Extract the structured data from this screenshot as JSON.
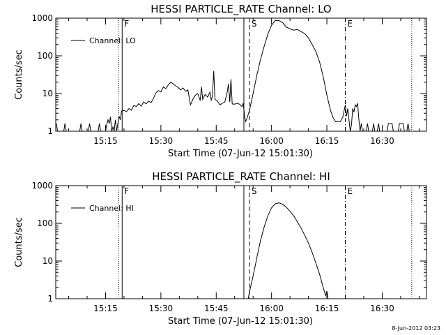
{
  "footer_timestamp": "8-Jun-2012 03:23",
  "chart_data": [
    {
      "type": "line",
      "title": "HESSI PARTICLE_RATE Channel: LO",
      "xlabel": "Start Time (07-Jun-12 15:01:30)",
      "ylabel": "Counts/sec",
      "yscale": "log",
      "ylim": [
        1,
        1000
      ],
      "xlim": [
        "15:01:30",
        "16:42:00"
      ],
      "x_ticks": [
        "15:15",
        "15:30",
        "15:45",
        "16:00",
        "16:15",
        "16:30"
      ],
      "y_ticks": [
        "1",
        "10",
        "100",
        "1000"
      ],
      "grid": false,
      "legend": {
        "position": "top-left",
        "entries": [
          "Channel: LO"
        ]
      },
      "markers": [
        {
          "time": "15:18:30",
          "style": "dotted",
          "label": ""
        },
        {
          "time": "15:19:30",
          "style": "solid",
          "label": "F"
        },
        {
          "time": "15:52:30",
          "style": "solid",
          "label": ""
        },
        {
          "time": "15:54:00",
          "style": "dashed",
          "label": "S"
        },
        {
          "time": "16:20:00",
          "style": "dashdot",
          "label": "E"
        },
        {
          "time": "16:38:00",
          "style": "dotted",
          "label": ""
        }
      ],
      "series": [
        {
          "name": "Channel: LO",
          "points": [
            [
              "15:01:40",
              1.6
            ],
            [
              "15:02:00",
              1
            ],
            [
              "15:03:40",
              1
            ],
            [
              "15:04:00",
              1.6
            ],
            [
              "15:04:20",
              1
            ],
            [
              "15:08:00",
              1
            ],
            [
              "15:08:20",
              1.6
            ],
            [
              "15:08:40",
              1
            ],
            [
              "15:10:20",
              1
            ],
            [
              "15:10:40",
              1.6
            ],
            [
              "15:11:00",
              1
            ],
            [
              "15:13:00",
              1
            ],
            [
              "15:13:20",
              1.6
            ],
            [
              "15:13:40",
              1
            ],
            [
              "15:15:00",
              1
            ],
            [
              "15:15:20",
              1.5
            ],
            [
              "15:15:40",
              2
            ],
            [
              "15:16:00",
              1.6
            ],
            [
              "15:16:20",
              2.4
            ],
            [
              "15:16:40",
              1
            ],
            [
              "15:17:00",
              1.3
            ],
            [
              "15:17:20",
              1
            ],
            [
              "15:17:40",
              2
            ],
            [
              "15:18:00",
              1
            ],
            [
              "15:18:20",
              1.6
            ],
            [
              "15:18:40",
              2.5
            ],
            [
              "15:19:00",
              2
            ],
            [
              "15:19:20",
              3.4
            ],
            [
              "15:20:00",
              3.6
            ],
            [
              "15:20:40",
              3.3
            ],
            [
              "15:21:20",
              4
            ],
            [
              "15:22:00",
              3.6
            ],
            [
              "15:22:40",
              4.8
            ],
            [
              "15:23:20",
              4.5
            ],
            [
              "15:24:00",
              5.4
            ],
            [
              "15:24:40",
              4.6
            ],
            [
              "15:25:20",
              6
            ],
            [
              "15:26:00",
              5.3
            ],
            [
              "15:26:40",
              6.3
            ],
            [
              "15:27:20",
              5.7
            ],
            [
              "15:28:00",
              7.5
            ],
            [
              "15:28:40",
              10.5
            ],
            [
              "15:29:20",
              12
            ],
            [
              "15:30:00",
              11
            ],
            [
              "15:30:40",
              15
            ],
            [
              "15:31:20",
              13.5
            ],
            [
              "15:32:00",
              17
            ],
            [
              "15:32:40",
              20
            ],
            [
              "15:33:20",
              18
            ],
            [
              "15:34:00",
              16
            ],
            [
              "15:34:40",
              14.5
            ],
            [
              "15:35:20",
              12.5
            ],
            [
              "15:36:00",
              14
            ],
            [
              "15:36:40",
              11.5
            ],
            [
              "15:37:20",
              12.5
            ],
            [
              "15:38:00",
              5
            ],
            [
              "15:38:40",
              7
            ],
            [
              "15:39:20",
              9
            ],
            [
              "15:40:00",
              10
            ],
            [
              "15:40:40",
              6.5
            ],
            [
              "15:41:00",
              15
            ],
            [
              "15:41:20",
              7
            ],
            [
              "15:42:00",
              9.5
            ],
            [
              "15:42:40",
              8
            ],
            [
              "15:43:20",
              11
            ],
            [
              "15:43:40",
              6.5
            ],
            [
              "15:44:00",
              9
            ],
            [
              "15:44:20",
              40
            ],
            [
              "15:44:40",
              7
            ],
            [
              "15:45:20",
              6.3
            ],
            [
              "15:46:00",
              5
            ],
            [
              "15:46:40",
              5.5
            ],
            [
              "15:47:20",
              6
            ],
            [
              "15:48:00",
              11
            ],
            [
              "15:48:20",
              18
            ],
            [
              "15:48:40",
              6
            ],
            [
              "15:49:00",
              24
            ],
            [
              "15:49:20",
              5.3
            ],
            [
              "15:50:00",
              5.2
            ],
            [
              "15:50:40",
              5.5
            ],
            [
              "15:51:20",
              5.2
            ],
            [
              "15:52:00",
              4.5
            ],
            [
              "15:52:20",
              5.5
            ],
            [
              "15:52:40",
              2.5
            ],
            [
              "15:53:00",
              1.8
            ],
            [
              "15:53:20",
              2.2
            ],
            [
              "15:54:00",
              3.5
            ],
            [
              "15:55:00",
              10
            ],
            [
              "15:56:00",
              30
            ],
            [
              "15:57:00",
              80
            ],
            [
              "15:58:00",
              180
            ],
            [
              "15:59:00",
              380
            ],
            [
              "16:00:00",
              650
            ],
            [
              "16:01:00",
              870
            ],
            [
              "16:02:00",
              860
            ],
            [
              "16:03:00",
              760
            ],
            [
              "16:04:00",
              580
            ],
            [
              "16:05:00",
              520
            ],
            [
              "16:06:00",
              480
            ],
            [
              "16:07:00",
              500
            ],
            [
              "16:08:00",
              440
            ],
            [
              "16:09:00",
              390
            ],
            [
              "16:10:00",
              300
            ],
            [
              "16:11:00",
              200
            ],
            [
              "16:12:00",
              130
            ],
            [
              "16:13:00",
              70
            ],
            [
              "16:14:00",
              28
            ],
            [
              "16:15:00",
              9
            ],
            [
              "16:16:00",
              3.5
            ],
            [
              "16:16:40",
              2.3
            ],
            [
              "16:17:20",
              1.8
            ],
            [
              "16:18:40",
              1.8
            ],
            [
              "16:19:20",
              2.4
            ],
            [
              "16:20:00",
              5
            ],
            [
              "16:20:20",
              2.5
            ],
            [
              "16:20:40",
              4
            ],
            [
              "16:21:00",
              2
            ],
            [
              "16:21:20",
              1
            ],
            [
              "16:21:40",
              1.5
            ],
            [
              "16:22:00",
              4
            ],
            [
              "16:22:20",
              3.2
            ],
            [
              "16:22:40",
              5
            ],
            [
              "16:23:00",
              4.5
            ],
            [
              "16:23:20",
              5.5
            ],
            [
              "16:23:40",
              2
            ],
            [
              "16:24:00",
              1
            ],
            [
              "16:24:20",
              1.6
            ],
            [
              "16:24:40",
              1
            ],
            [
              "16:25:40",
              1
            ],
            [
              "16:26:00",
              1.6
            ],
            [
              "16:26:20",
              1
            ],
            [
              "16:27:20",
              1
            ],
            [
              "16:27:40",
              1.6
            ],
            [
              "16:28:00",
              1
            ],
            [
              "16:28:40",
              1
            ],
            [
              "16:29:00",
              1.6
            ],
            [
              "16:29:20",
              1
            ],
            [
              "16:31:20",
              1
            ],
            [
              "16:31:40",
              1.6
            ],
            [
              "16:32:40",
              1.6
            ],
            [
              "16:33:00",
              1
            ],
            [
              "16:34:20",
              1
            ],
            [
              "16:34:40",
              1.6
            ],
            [
              "16:35:40",
              1.6
            ],
            [
              "16:36:00",
              1
            ],
            [
              "16:36:40",
              1
            ],
            [
              "16:37:00",
              1.6
            ],
            [
              "16:37:20",
              1
            ]
          ]
        }
      ]
    },
    {
      "type": "line",
      "title": "HESSI PARTICLE_RATE Channel: HI",
      "xlabel": "Start Time (07-Jun-12 15:01:30)",
      "ylabel": "Counts/sec",
      "yscale": "log",
      "ylim": [
        1,
        1000
      ],
      "xlim": [
        "15:01:30",
        "16:42:00"
      ],
      "x_ticks": [
        "15:15",
        "15:30",
        "15:45",
        "16:00",
        "16:15",
        "16:30"
      ],
      "y_ticks": [
        "1",
        "10",
        "100",
        "1000"
      ],
      "grid": false,
      "legend": {
        "position": "top-left",
        "entries": [
          "Channel: HI"
        ]
      },
      "markers": [
        {
          "time": "15:18:30",
          "style": "dotted",
          "label": ""
        },
        {
          "time": "15:19:30",
          "style": "solid",
          "label": "F"
        },
        {
          "time": "15:52:30",
          "style": "solid",
          "label": ""
        },
        {
          "time": "15:54:00",
          "style": "dashed",
          "label": "S"
        },
        {
          "time": "16:20:00",
          "style": "dashdot",
          "label": "E"
        },
        {
          "time": "16:38:00",
          "style": "dotted",
          "label": ""
        }
      ],
      "series": [
        {
          "name": "Channel: HI",
          "points": [
            [
              "15:53:40",
              1
            ],
            [
              "15:54:00",
              1.5
            ],
            [
              "15:55:00",
              4
            ],
            [
              "15:56:00",
              12
            ],
            [
              "15:57:00",
              35
            ],
            [
              "15:58:00",
              80
            ],
            [
              "15:59:00",
              160
            ],
            [
              "16:00:00",
              260
            ],
            [
              "16:01:00",
              330
            ],
            [
              "16:02:00",
              350
            ],
            [
              "16:03:00",
              320
            ],
            [
              "16:04:00",
              270
            ],
            [
              "16:05:00",
              210
            ],
            [
              "16:06:00",
              160
            ],
            [
              "16:07:00",
              110
            ],
            [
              "16:08:00",
              75
            ],
            [
              "16:09:00",
              48
            ],
            [
              "16:10:00",
              30
            ],
            [
              "16:11:00",
              17
            ],
            [
              "16:12:00",
              9
            ],
            [
              "16:13:00",
              4.5
            ],
            [
              "16:14:00",
              2
            ],
            [
              "16:14:40",
              1.2
            ],
            [
              "16:15:00",
              1.6
            ],
            [
              "16:15:20",
              1
            ]
          ]
        }
      ]
    }
  ]
}
